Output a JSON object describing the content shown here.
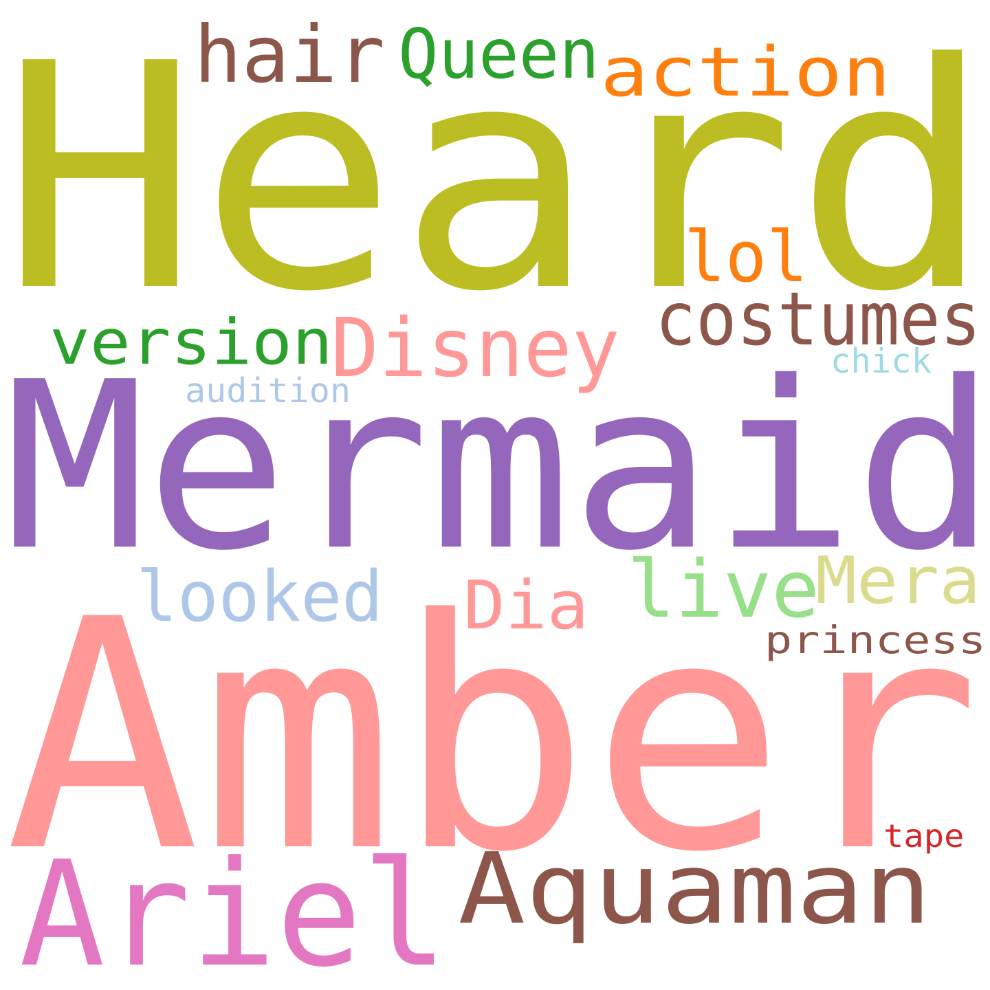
{
  "word_cloud": {
    "background": "#ffffff",
    "words": [
      {
        "id": "heard",
        "text": "Heard",
        "color": "#bcbd22"
      },
      {
        "id": "mermaid",
        "text": "Mermaid",
        "color": "#9467bd"
      },
      {
        "id": "amber",
        "text": "Amber",
        "color": "#ff9896"
      },
      {
        "id": "aquaman",
        "text": "Aquaman",
        "color": "#8c564b"
      },
      {
        "id": "ariel",
        "text": "Ariel",
        "color": "#e377c2"
      },
      {
        "id": "disney",
        "text": "Disney",
        "color": "#ff9896"
      },
      {
        "id": "action",
        "text": "action",
        "color": "#ff7f0e"
      },
      {
        "id": "hair",
        "text": "hair",
        "color": "#8c564b"
      },
      {
        "id": "queen",
        "text": "Queen",
        "color": "#2ca02c"
      },
      {
        "id": "costumes",
        "text": "costumes",
        "color": "#8c564b"
      },
      {
        "id": "version",
        "text": "version",
        "color": "#2ca02c"
      },
      {
        "id": "lol",
        "text": "lol",
        "color": "#ff7f0e"
      },
      {
        "id": "looked",
        "text": "looked",
        "color": "#aec7e8"
      },
      {
        "id": "live",
        "text": "live",
        "color": "#98df8a"
      },
      {
        "id": "mera",
        "text": "Mera",
        "color": "#dbdb8d"
      },
      {
        "id": "dia",
        "text": "Dia",
        "color": "#ff9896"
      },
      {
        "id": "princess",
        "text": "princess",
        "color": "#8c564b"
      },
      {
        "id": "audition",
        "text": "audition",
        "color": "#aec7e8"
      },
      {
        "id": "chick",
        "text": "chick",
        "color": "#9edae5"
      },
      {
        "id": "tape",
        "text": "tape",
        "color": "#d62728"
      }
    ]
  }
}
